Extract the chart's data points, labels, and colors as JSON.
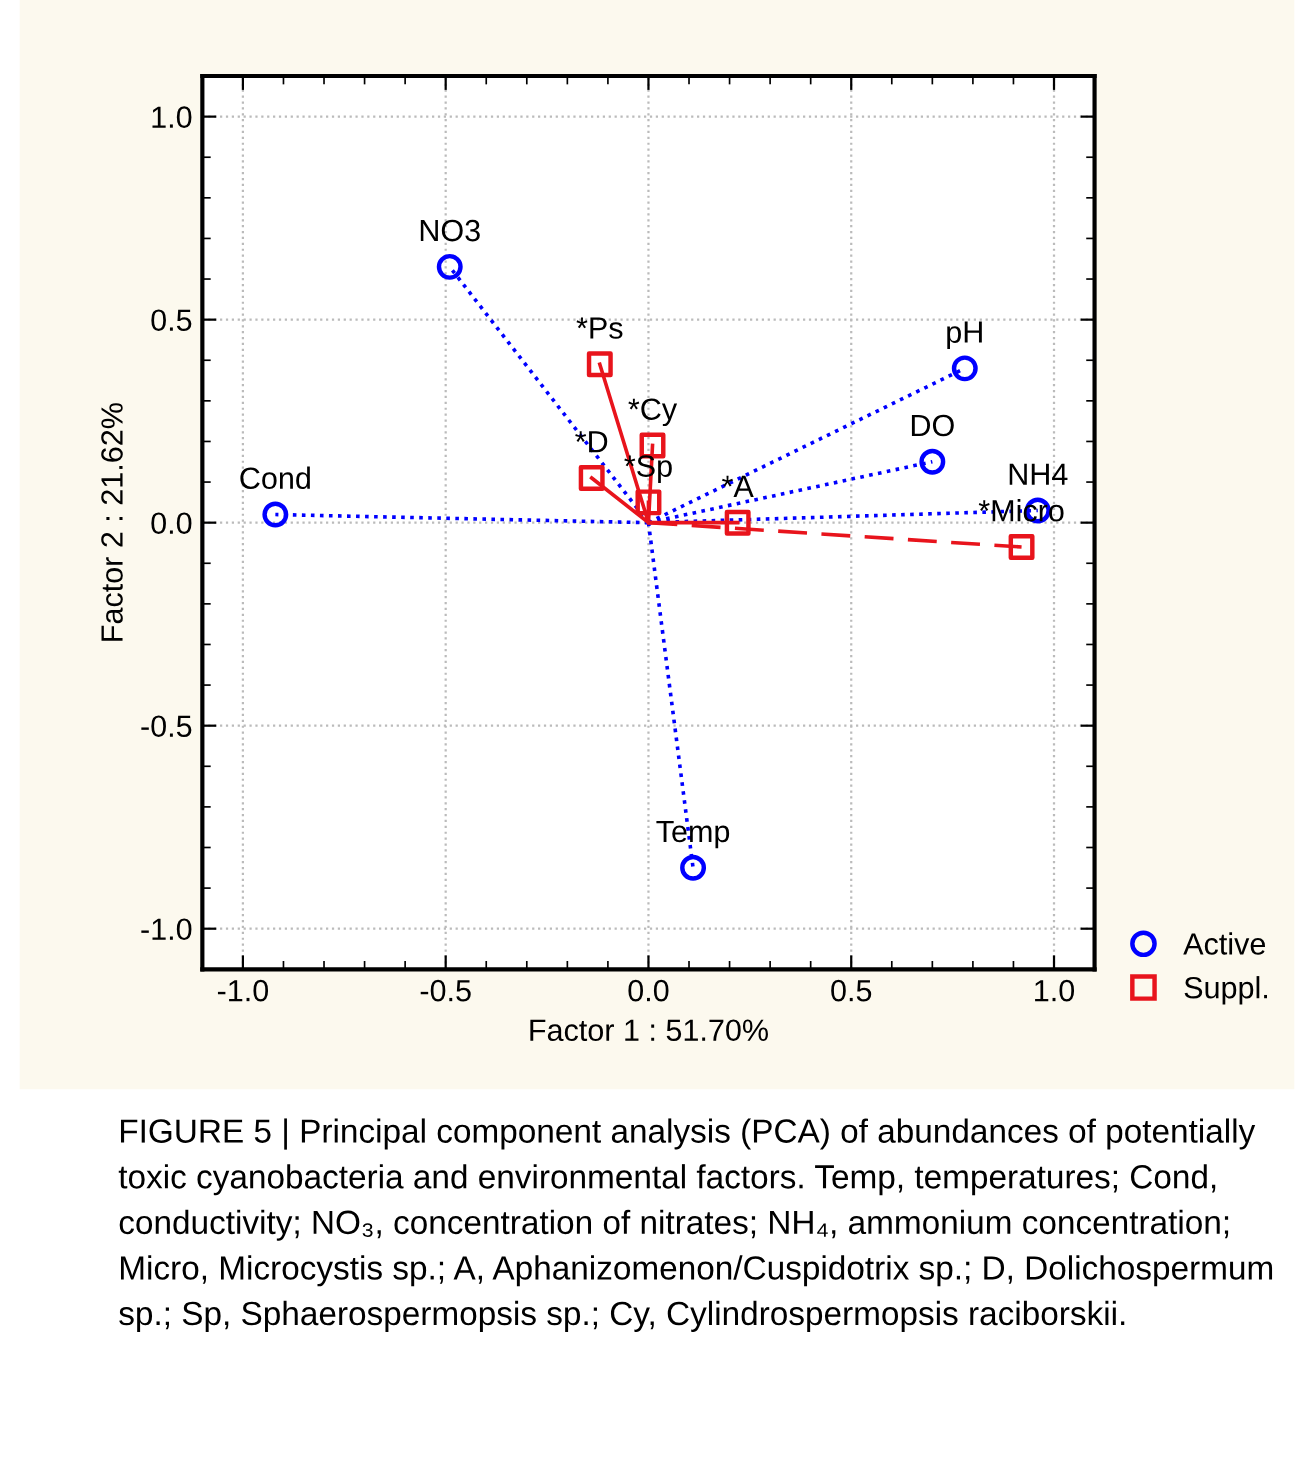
{
  "chart_data": {
    "type": "scatter",
    "xlabel": "Factor 1 : 51.70%",
    "ylabel": "Factor 2 : 21.62%",
    "xlim": [
      -1.1,
      1.1
    ],
    "ylim": [
      -1.1,
      1.1
    ],
    "xticks": [
      {
        "value": -1,
        "label": "-1.0"
      },
      -0.5,
      {
        "value": 0,
        "label": "0.0"
      },
      0.5,
      {
        "value": 1,
        "label": "1.0"
      }
    ],
    "yticks": [
      {
        "value": -1,
        "label": "-1.0"
      },
      -0.5,
      {
        "value": 0,
        "label": "0.0"
      },
      0.5,
      {
        "value": 1,
        "label": "1.0"
      }
    ],
    "grid": true,
    "legend": "bottom right",
    "series": [
      {
        "type": "line",
        "color": "#0000ff",
        "line_style": "dotted",
        "marker": "none",
        "x": [
          0,
          -0.92,
          null,
          0,
          -0.49,
          null,
          0,
          0.78,
          null,
          0,
          0.7,
          null,
          0,
          0.96,
          null,
          0,
          0.11
        ],
        "values": [
          0,
          0.02,
          null,
          0,
          0.63,
          null,
          0,
          0.38,
          null,
          0,
          0.15,
          null,
          0,
          0.03,
          null,
          0,
          -0.85
        ]
      },
      {
        "type": "line",
        "color": "#e8141c",
        "line_style": "solid",
        "marker": "none",
        "x": [
          0,
          -0.12,
          null,
          0,
          0.01,
          null,
          0,
          -0.14,
          null,
          0,
          0.0,
          null,
          0,
          0.22
        ],
        "values": [
          0,
          0.39,
          null,
          0,
          0.19,
          null,
          0,
          0.11,
          null,
          0,
          0.05,
          null,
          0,
          0.0
        ]
      },
      {
        "type": "line",
        "color": "#e8141c",
        "line_style": "dashed",
        "marker": "none",
        "x": [
          0,
          0.92
        ],
        "values": [
          0,
          -0.06
        ]
      },
      {
        "name": "Active",
        "color": "#0000ff",
        "marker": "circle",
        "x": [
          -0.92,
          -0.49,
          0.78,
          0.7,
          0.96,
          0.11
        ],
        "values": [
          0.02,
          0.63,
          0.38,
          0.15,
          0.03,
          -0.85
        ]
      },
      {
        "name": "Suppl.",
        "color": "#e8141c",
        "marker": "square",
        "x": [
          -0.12,
          0.01,
          -0.14,
          0.0,
          0.22,
          0.92
        ],
        "values": [
          0.39,
          0.19,
          0.11,
          0.05,
          0.0,
          -0.06
        ]
      }
    ],
    "annotations": [
      {
        "text": "Cond",
        "x": -0.92,
        "y": 0.02
      },
      {
        "text": "NO3",
        "x": -0.49,
        "y": 0.63
      },
      {
        "text": "pH",
        "x": 0.78,
        "y": 0.38
      },
      {
        "text": "DO",
        "x": 0.7,
        "y": 0.15
      },
      {
        "text": "NH4",
        "x": 0.96,
        "y": 0.03
      },
      {
        "text": "Temp",
        "x": 0.11,
        "y": -0.85
      },
      {
        "text": "*Ps",
        "x": -0.12,
        "y": 0.39
      },
      {
        "text": "*Cy",
        "x": 0.01,
        "y": 0.19
      },
      {
        "text": "*D",
        "x": -0.14,
        "y": 0.11
      },
      {
        "text": "*Sp",
        "x": 0.0,
        "y": 0.05
      },
      {
        "text": "*A",
        "x": 0.22,
        "y": 0.0
      },
      {
        "text": "*Micro",
        "x": 0.92,
        "y": -0.06
      },
      "FIGURE 5 | Principal component analysis (PCA) of abundances of potentially toxic cyanobacteria and environmental factors. Temp, temperatures; Cond, conductivity; NO₃, concentration of nitrates; NH₄, ammonium concentration; Micro, Microcystis sp.; A, Aphanizomenon/Cuspidotrix sp.; D, Dolichospermum sp.; Sp, Sphaerospermopsis sp.; Cy, Cylindrospermopsis raciborskii."
    ]
  }
}
